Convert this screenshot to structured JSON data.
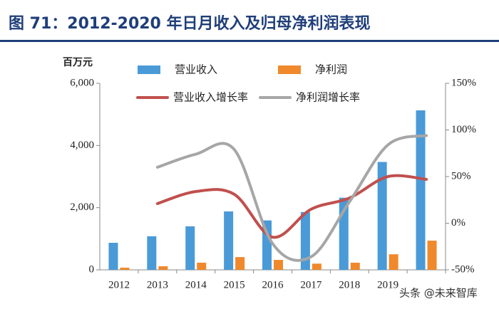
{
  "chart_data": {
    "type": "bar_line",
    "title": "图 71：2012-2020 年日月收入及归母净利润表现",
    "y_label": "百万元",
    "categories": [
      "2012",
      "2013",
      "2014",
      "2015",
      "2016",
      "2017",
      "2018",
      "2019",
      null
    ],
    "series": [
      {
        "name": "营业收入",
        "type": "bar",
        "color": "#4a9ad8",
        "values": [
          870,
          1080,
          1400,
          1880,
          1590,
          1860,
          2320,
          3470,
          5130
        ]
      },
      {
        "name": "净利润",
        "type": "bar",
        "color": "#f0892b",
        "values": [
          70,
          115,
          230,
          410,
          320,
          200,
          230,
          500,
          940
        ]
      },
      {
        "name": "营业收入增长率",
        "type": "line",
        "axis": "y2",
        "color": "#c0504d",
        "values": [
          null,
          21,
          34,
          31,
          -15,
          15,
          27,
          50,
          47
        ]
      },
      {
        "name": "净利润增长率",
        "type": "line",
        "axis": "y2",
        "color": "#a6a6a6",
        "values": [
          null,
          60,
          74,
          79,
          -22,
          -36,
          23,
          84,
          94
        ]
      }
    ],
    "ylim": [
      0,
      6000
    ],
    "yticks": [
      0,
      {
        "value": 2000,
        "label": "2,000"
      },
      {
        "value": 4000,
        "label": "4,000"
      },
      {
        "value": 6000,
        "label": "6,000"
      }
    ],
    "y2lim": [
      -50,
      150
    ],
    "y2ticks": [
      {
        "value": -50,
        "label": "-50%"
      },
      {
        "value": 0,
        "label": "0%"
      },
      {
        "value": 50,
        "label": "50%"
      },
      {
        "value": 100,
        "label": "100%"
      },
      {
        "value": 150,
        "label": "150%"
      }
    ],
    "grid": false,
    "watermark": "头条 @未来智库"
  }
}
